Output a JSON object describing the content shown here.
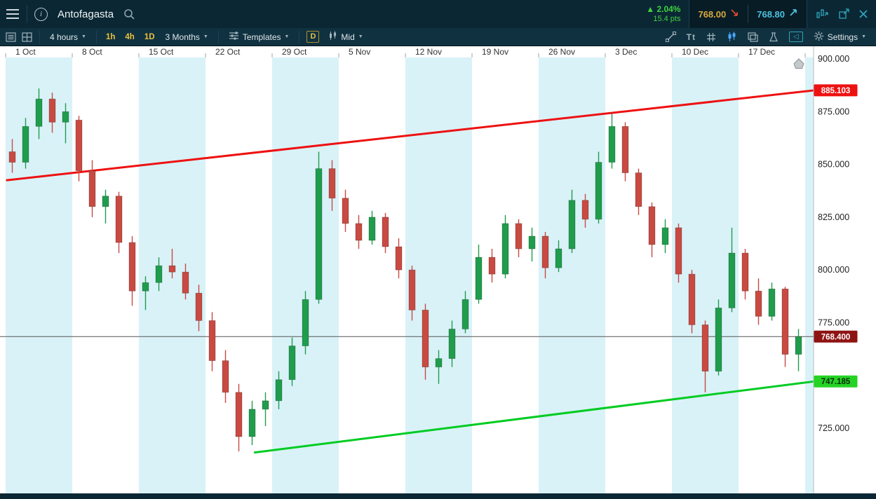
{
  "icons": {
    "caret_down": "▼",
    "up_triangle": "▲",
    "back_arrow": "◁",
    "text_tool": "Tt",
    "info": "i"
  },
  "header": {
    "title": "Antofagasta",
    "change": {
      "direction": "up",
      "percent": "2.04%",
      "points": "15.4 pts"
    },
    "sell": {
      "value": "768.00",
      "direction": "down"
    },
    "buy": {
      "value": "768.80",
      "direction": "up"
    }
  },
  "toolbar": {
    "interval": "4 hours",
    "quick_intervals": [
      "1h",
      "4h",
      "1D"
    ],
    "range": "3 Months",
    "templates": "Templates",
    "candle_mode": "D",
    "price_mode": "Mid",
    "settings": "Settings"
  },
  "chart_data": {
    "type": "candlestick",
    "instrument": "Antofagasta",
    "interval": "daily",
    "x_labels": [
      "1 Oct",
      "8 Oct",
      "15 Oct",
      "22 Oct",
      "29 Oct",
      "5 Nov",
      "12 Nov",
      "19 Nov",
      "26 Nov",
      "3 Dec",
      "10 Dec",
      "17 Dec"
    ],
    "y_axis": {
      "ticks": [
        "900.000",
        "875.000",
        "850.000",
        "825.000",
        "800.000",
        "775.000",
        "725.000"
      ],
      "tick_prices": [
        900,
        875,
        850,
        825,
        800,
        775,
        725
      ],
      "visible_price_range": [
        713,
        905
      ]
    },
    "candles_ohlc": [
      [
        856,
        862,
        846,
        851
      ],
      [
        851,
        872,
        848,
        868
      ],
      [
        868,
        886,
        862,
        881
      ],
      [
        881,
        884,
        865,
        870
      ],
      [
        870,
        879,
        860,
        875
      ],
      [
        871,
        873,
        842,
        847
      ],
      [
        847,
        852,
        825,
        830
      ],
      [
        830,
        838,
        822,
        835
      ],
      [
        835,
        837,
        808,
        813
      ],
      [
        813,
        816,
        783,
        790
      ],
      [
        790,
        797,
        781,
        794
      ],
      [
        794,
        806,
        790,
        802
      ],
      [
        802,
        810,
        796,
        799
      ],
      [
        799,
        803,
        786,
        789
      ],
      [
        789,
        793,
        771,
        776
      ],
      [
        776,
        780,
        752,
        757
      ],
      [
        757,
        762,
        737,
        742
      ],
      [
        742,
        746,
        714,
        721
      ],
      [
        721,
        738,
        717,
        734
      ],
      [
        734,
        742,
        726,
        738
      ],
      [
        738,
        752,
        734,
        748
      ],
      [
        748,
        768,
        745,
        764
      ],
      [
        764,
        790,
        760,
        786
      ],
      [
        786,
        856,
        784,
        848
      ],
      [
        848,
        852,
        828,
        834
      ],
      [
        834,
        838,
        818,
        822
      ],
      [
        822,
        826,
        810,
        814
      ],
      [
        814,
        828,
        812,
        825
      ],
      [
        825,
        827,
        808,
        811
      ],
      [
        811,
        815,
        796,
        800
      ],
      [
        800,
        802,
        776,
        781
      ],
      [
        781,
        784,
        748,
        754
      ],
      [
        754,
        762,
        746,
        758
      ],
      [
        758,
        776,
        754,
        772
      ],
      [
        772,
        790,
        770,
        786
      ],
      [
        786,
        812,
        784,
        806
      ],
      [
        806,
        810,
        794,
        798
      ],
      [
        798,
        826,
        796,
        822
      ],
      [
        822,
        824,
        806,
        810
      ],
      [
        810,
        820,
        804,
        816
      ],
      [
        816,
        818,
        796,
        801
      ],
      [
        801,
        814,
        799,
        810
      ],
      [
        810,
        838,
        808,
        833
      ],
      [
        833,
        836,
        820,
        824
      ],
      [
        824,
        856,
        822,
        851
      ],
      [
        851,
        874,
        848,
        868
      ],
      [
        868,
        870,
        842,
        846
      ],
      [
        846,
        848,
        826,
        830
      ],
      [
        830,
        832,
        806,
        812
      ],
      [
        812,
        824,
        808,
        820
      ],
      [
        820,
        822,
        794,
        798
      ],
      [
        798,
        800,
        770,
        774
      ],
      [
        774,
        776,
        742,
        752
      ],
      [
        752,
        786,
        750,
        782
      ],
      [
        782,
        820,
        780,
        808
      ],
      [
        808,
        810,
        786,
        790
      ],
      [
        790,
        796,
        774,
        778
      ],
      [
        778,
        794,
        776,
        791
      ],
      [
        791,
        792,
        754,
        760
      ],
      [
        760,
        772,
        752,
        768.4
      ]
    ],
    "current_price": {
      "value": 768.4,
      "label": "768.400"
    },
    "trendlines": [
      {
        "name": "resistance",
        "color": "#ee1111",
        "start_day": -0.4,
        "start_price": 842.5,
        "end_day": 60.2,
        "end_price": 885.103
      },
      {
        "name": "support",
        "color": "#00cc22",
        "start_day": 18.2,
        "start_price": 713.5,
        "end_day": 60.2,
        "end_price": 747.185
      }
    ],
    "badges": [
      {
        "label": "885.103",
        "price": 885.103,
        "bg": "#ee1111",
        "fg": "#ffffff"
      },
      {
        "label": "768.400",
        "price": 768.4,
        "bg": "#8e1414",
        "fg": "#ffffff"
      },
      {
        "label": "747.185",
        "price": 747.185,
        "bg": "#25d325",
        "fg": "#0a2a0a"
      }
    ],
    "week_band_color": "#d9f2f8",
    "candle_up_color": "#1f9d4d",
    "candle_down_color": "#c94a42"
  }
}
